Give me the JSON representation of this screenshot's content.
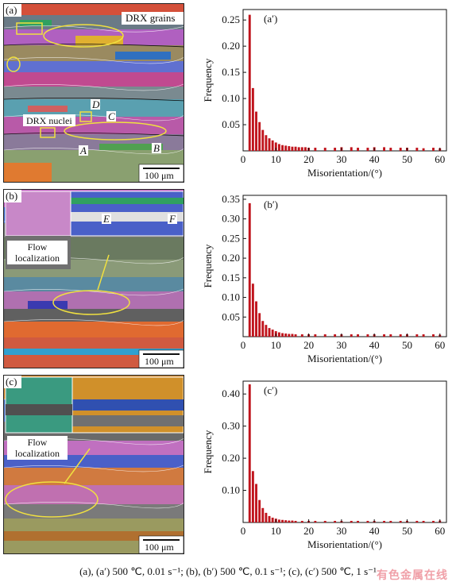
{
  "panels": [
    {
      "map_label": "(a)",
      "inset_label": "",
      "annotations": [
        "DRX grains",
        "DRX nuclei",
        "A",
        "B",
        "C",
        "D"
      ],
      "scale_bar": "100 μm"
    },
    {
      "map_label": "(b)",
      "inset_label": "Flow localization",
      "annotations": [
        "E",
        "F"
      ],
      "scale_bar": "100 μm"
    },
    {
      "map_label": "(c)",
      "inset_label": "Flow localization",
      "annotations": [],
      "scale_bar": "100 μm"
    }
  ],
  "chart_data": [
    {
      "type": "bar",
      "label": "(a′)",
      "xlabel": "Misorientation/(°)",
      "ylabel": "Frequency",
      "xlim": [
        0,
        62
      ],
      "ylim": [
        0,
        0.27
      ],
      "xticks": [
        0,
        10,
        20,
        30,
        40,
        50,
        60
      ],
      "yticks": [
        0.05,
        0.1,
        0.15,
        0.2,
        0.25
      ],
      "ytick_labels": [
        "0.05",
        "0.10",
        "0.15",
        "0.20",
        "0.25"
      ],
      "x": [
        2,
        3,
        4,
        5,
        6,
        7,
        8,
        9,
        10,
        11,
        12,
        13,
        14,
        15,
        16,
        17,
        18,
        19,
        20,
        22,
        25,
        28,
        30,
        33,
        35,
        38,
        40,
        43,
        45,
        48,
        50,
        53,
        55,
        58,
        60
      ],
      "values": [
        0.26,
        0.12,
        0.075,
        0.055,
        0.04,
        0.03,
        0.024,
        0.02,
        0.016,
        0.013,
        0.011,
        0.01,
        0.009,
        0.008,
        0.008,
        0.007,
        0.007,
        0.007,
        0.006,
        0.006,
        0.006,
        0.006,
        0.007,
        0.007,
        0.006,
        0.006,
        0.007,
        0.007,
        0.006,
        0.006,
        0.006,
        0.006,
        0.005,
        0.006,
        0.005
      ],
      "color": "#c0141c"
    },
    {
      "type": "bar",
      "label": "(b′)",
      "xlabel": "Misorientation/(°)",
      "ylabel": "Frequency",
      "xlim": [
        0,
        62
      ],
      "ylim": [
        0,
        0.36
      ],
      "xticks": [
        0,
        10,
        20,
        30,
        40,
        50,
        60
      ],
      "yticks": [
        0.05,
        0.1,
        0.15,
        0.2,
        0.25,
        0.3,
        0.35
      ],
      "ytick_labels": [
        "0.05",
        "0.10",
        "0.15",
        "0.20",
        "0.25",
        "0.30",
        "0.35"
      ],
      "x": [
        2,
        3,
        4,
        5,
        6,
        7,
        8,
        9,
        10,
        11,
        12,
        13,
        14,
        15,
        16,
        18,
        20,
        22,
        25,
        28,
        30,
        33,
        35,
        38,
        40,
        43,
        45,
        48,
        50,
        53,
        55,
        58,
        60
      ],
      "values": [
        0.34,
        0.135,
        0.09,
        0.06,
        0.04,
        0.03,
        0.022,
        0.018,
        0.014,
        0.011,
        0.009,
        0.008,
        0.007,
        0.007,
        0.006,
        0.006,
        0.006,
        0.006,
        0.006,
        0.006,
        0.006,
        0.006,
        0.006,
        0.006,
        0.006,
        0.006,
        0.006,
        0.006,
        0.006,
        0.006,
        0.006,
        0.006,
        0.005
      ],
      "color": "#c0141c"
    },
    {
      "type": "bar",
      "label": "(c′)",
      "xlabel": "Misorientation/(°)",
      "ylabel": "Frequency",
      "xlim": [
        0,
        62
      ],
      "ylim": [
        0,
        0.44
      ],
      "xticks": [
        0,
        10,
        20,
        30,
        40,
        50,
        60
      ],
      "yticks": [
        0.1,
        0.2,
        0.3,
        0.4
      ],
      "ytick_labels": [
        "0.10",
        "0.20",
        "0.30",
        "0.40"
      ],
      "x": [
        2,
        3,
        4,
        5,
        6,
        7,
        8,
        9,
        10,
        11,
        12,
        13,
        14,
        15,
        16,
        18,
        20,
        22,
        25,
        28,
        30,
        33,
        35,
        38,
        40,
        43,
        45,
        48,
        50,
        53,
        55,
        58,
        60
      ],
      "values": [
        0.43,
        0.16,
        0.12,
        0.07,
        0.045,
        0.03,
        0.02,
        0.015,
        0.012,
        0.009,
        0.008,
        0.007,
        0.006,
        0.006,
        0.005,
        0.005,
        0.005,
        0.005,
        0.005,
        0.005,
        0.005,
        0.005,
        0.005,
        0.005,
        0.005,
        0.005,
        0.005,
        0.005,
        0.005,
        0.005,
        0.005,
        0.005,
        0.006
      ],
      "color": "#c0141c"
    }
  ],
  "caption": "(a), (a′) 500 ℃, 0.01 s⁻¹; (b), (b′) 500 ℃, 0.1 s⁻¹; (c), (c′) 500 ℃, 1 s⁻¹",
  "watermark": "有色金属在线"
}
